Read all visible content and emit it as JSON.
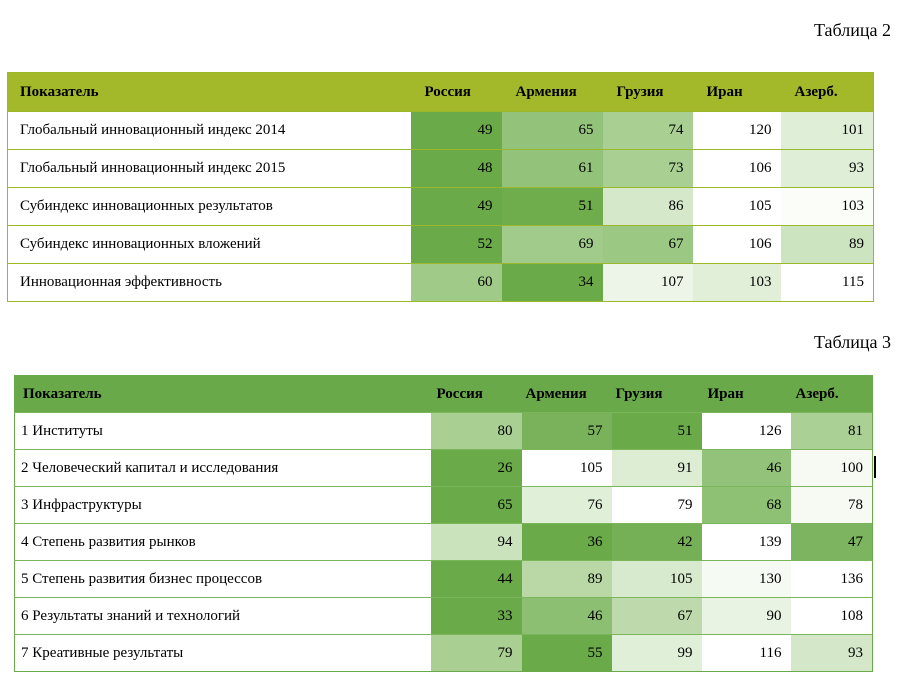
{
  "table2": {
    "caption": "Таблица 2",
    "headers": [
      "Показатель",
      "Россия",
      "Армения",
      "Грузия",
      "Иран",
      "Азерб."
    ],
    "rows": [
      {
        "label": "Глобальный инновационный индекс 2014",
        "values": [
          "49",
          "65",
          "74",
          "120",
          "101"
        ],
        "shades": [
          "#6aaa48",
          "#93c37a",
          "#a9cf93",
          "#ffffff",
          "#dfeed6"
        ]
      },
      {
        "label": "Глобальный инновационный индекс 2015",
        "values": [
          "48",
          "61",
          "73",
          "106",
          "93"
        ],
        "shades": [
          "#6aaa48",
          "#93c37a",
          "#a9cf93",
          "#ffffff",
          "#dfeed6"
        ]
      },
      {
        "label": "Субиндекс инновационных результатов",
        "values": [
          "49",
          "51",
          "86",
          "105",
          "103"
        ],
        "shades": [
          "#6aaa48",
          "#6eac4c",
          "#d5e8ca",
          "#ffffff",
          "#fbfdf9"
        ]
      },
      {
        "label": "Субиндекс инновационных вложений",
        "values": [
          "52",
          "69",
          "67",
          "106",
          "89"
        ],
        "shades": [
          "#6aaa48",
          "#a1cb8a",
          "#9bc883",
          "#ffffff",
          "#cde4c0"
        ]
      },
      {
        "label": "Инновационная эффективность",
        "values": [
          "60",
          "34",
          "107",
          "103",
          "115"
        ],
        "shades": [
          "#9fca88",
          "#6aaa48",
          "#ecf5e7",
          "#e1efd9",
          "#ffffff"
        ]
      }
    ]
  },
  "table3": {
    "caption": "Таблица 3",
    "headers": [
      "Показатель",
      "Россия",
      "Армения",
      "Грузия",
      "Иран",
      "Азерб."
    ],
    "rows": [
      {
        "label": "1 Институты",
        "values": [
          "80",
          "57",
          "51",
          "126",
          "81"
        ],
        "shades": [
          "#a9cf93",
          "#79b25a",
          "#6aaa48",
          "#ffffff",
          "#abd095"
        ]
      },
      {
        "label": "2 Человеческий капитал и исследования",
        "values": [
          "26",
          "105",
          "91",
          "46",
          "100"
        ],
        "shades": [
          "#6aaa48",
          "#ffffff",
          "#ddedd3",
          "#93c37a",
          "#f6faf3"
        ]
      },
      {
        "label": "3 Инфраструктуры",
        "values": [
          "65",
          "76",
          "79",
          "68",
          "78"
        ],
        "shades": [
          "#6aaa48",
          "#e0efd8",
          "#ffffff",
          "#8fc175",
          "#f6faf3"
        ]
      },
      {
        "label": "4 Степень развития рынков",
        "values": [
          "94",
          "36",
          "42",
          "139",
          "47"
        ],
        "shades": [
          "#cbe3bd",
          "#6aaa48",
          "#75b056",
          "#ffffff",
          "#7db45f"
        ]
      },
      {
        "label": "5 Степень развития бизнес процессов",
        "values": [
          "44",
          "89",
          "105",
          "130",
          "136"
        ],
        "shades": [
          "#6aaa48",
          "#b9d8a6",
          "#d8eacd",
          "#f5faf2",
          "#ffffff"
        ]
      },
      {
        "label": "6 Результаты знаний и технологий",
        "values": [
          "33",
          "46",
          "67",
          "90",
          "108"
        ],
        "shades": [
          "#6aaa48",
          "#8cbf71",
          "#bedaad",
          "#e9f3e3",
          "#ffffff"
        ]
      },
      {
        "label": "7 Креативные результаты",
        "values": [
          "79",
          "55",
          "99",
          "116",
          "93"
        ],
        "shades": [
          "#a9cf93",
          "#6aaa48",
          "#e0efd8",
          "#ffffff",
          "#d4e8c9"
        ]
      }
    ]
  }
}
